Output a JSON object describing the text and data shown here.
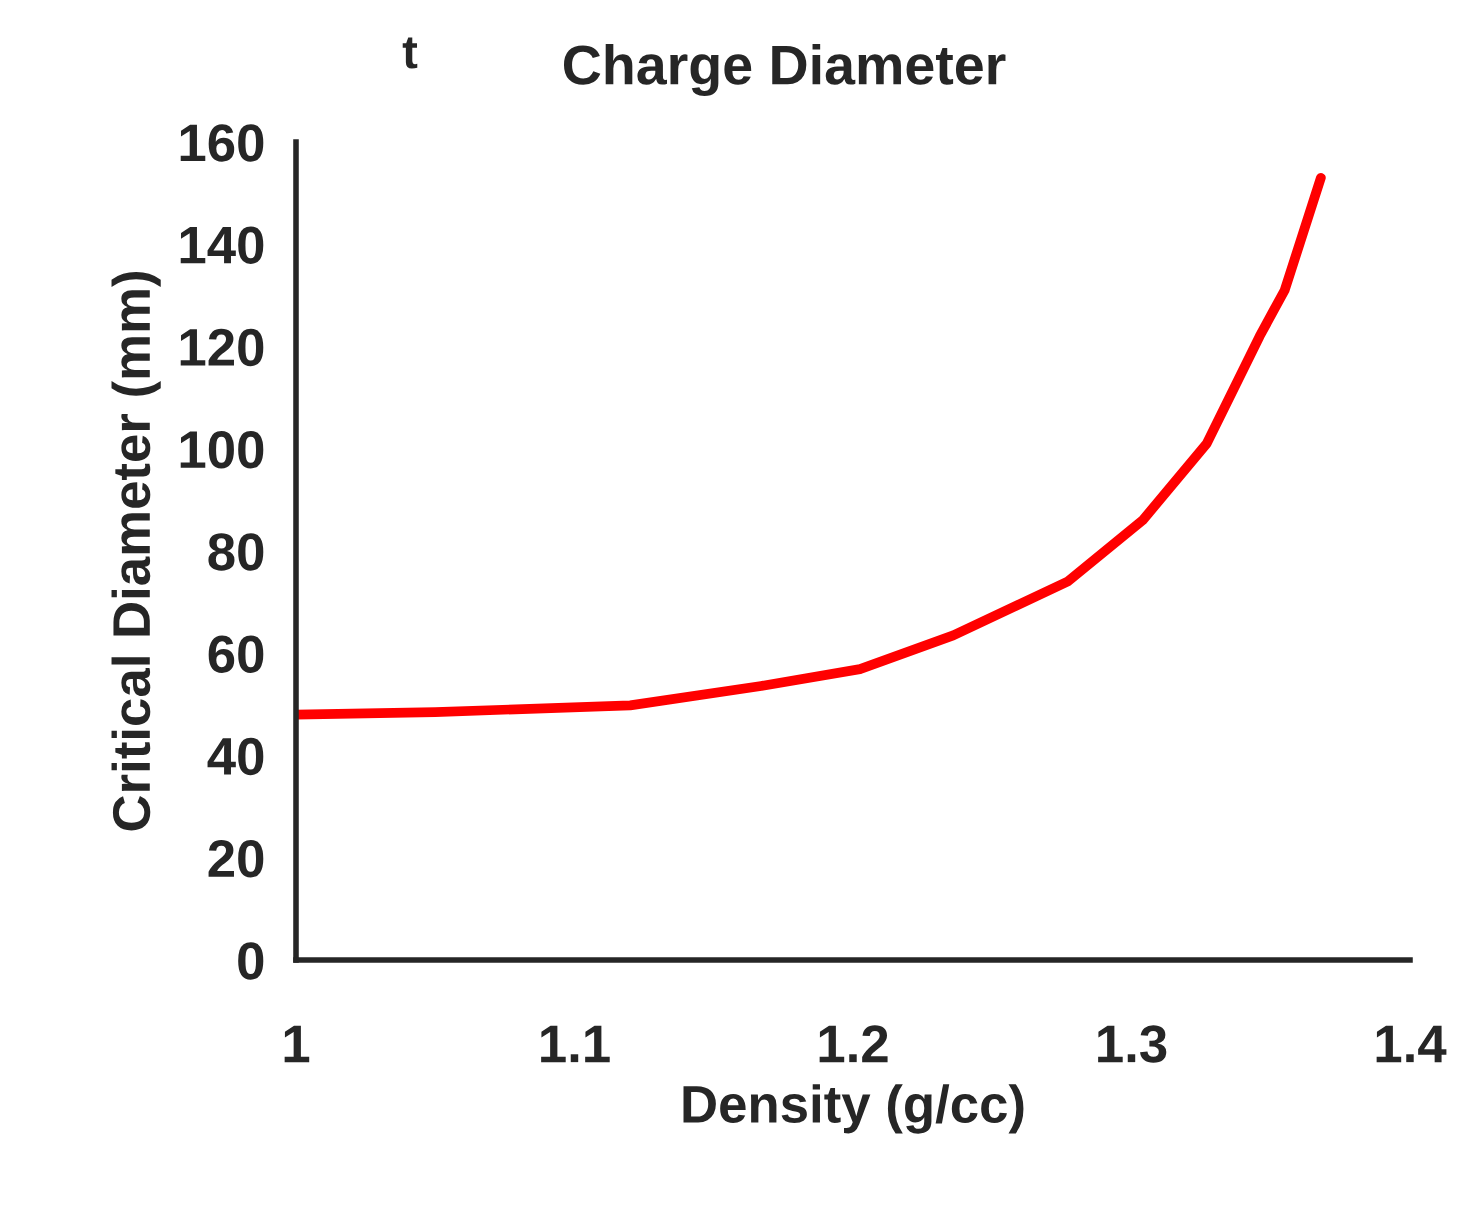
{
  "chart_data": {
    "type": "line",
    "title": "Charge Diameter",
    "annotations": [
      "t"
    ],
    "xlabel": "Density (g/cc)",
    "ylabel": "Critical Diameter (mm)",
    "series": [
      {
        "color": "#ff0000",
        "x": [
          1.0,
          1.05,
          1.12,
          1.167,
          1.2025,
          1.236,
          1.277,
          1.304,
          1.327,
          1.346,
          1.355,
          1.368
        ],
        "values": [
          48,
          48.5,
          49.8,
          53.6,
          56.9,
          63.5,
          74,
          86,
          101,
          122,
          131,
          153
        ]
      }
    ],
    "xlim": [
      1,
      1.4
    ],
    "xticks": [
      1,
      1.1,
      1.2,
      1.3,
      1.4
    ],
    "ylim": [
      0,
      160
    ],
    "yticks": [
      0,
      20,
      40,
      60,
      80,
      100,
      120,
      140,
      160
    ],
    "grid": false,
    "legend": false,
    "marker": "none",
    "line_style": "solid"
  }
}
